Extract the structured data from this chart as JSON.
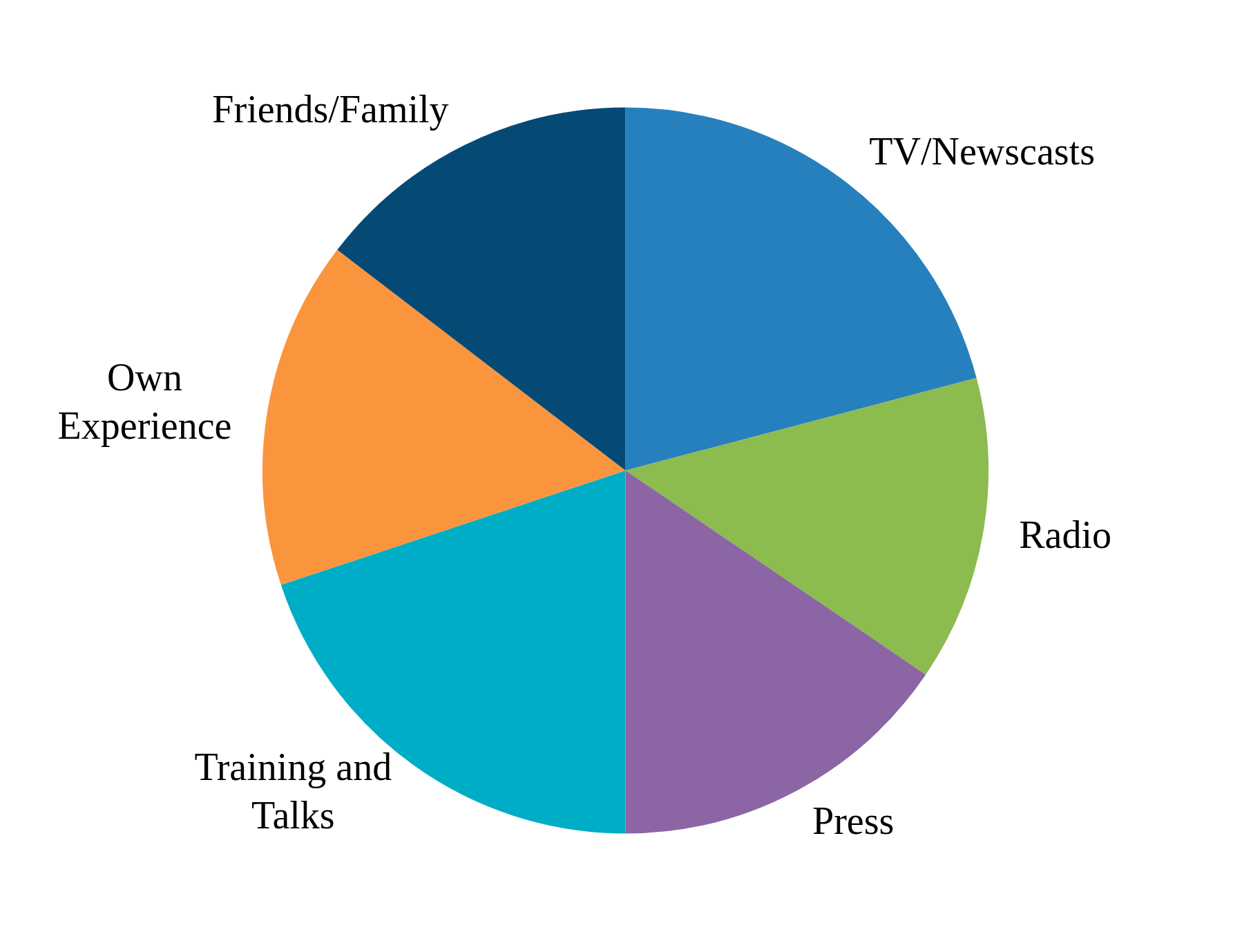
{
  "chart_data": {
    "type": "pie",
    "categories": [
      "TV/Newscasts",
      "Radio",
      "Press",
      "Training and Talks",
      "Own Experience",
      "Friends/Family"
    ],
    "values": [
      20.9,
      13.6,
      15.5,
      19.9,
      15.5,
      14.6
    ],
    "colors": [
      "#2680bd",
      "#8cbb4f",
      "#8b65a4",
      "#00adc6",
      "#fb953d",
      "#044a75"
    ],
    "legend": false
  }
}
